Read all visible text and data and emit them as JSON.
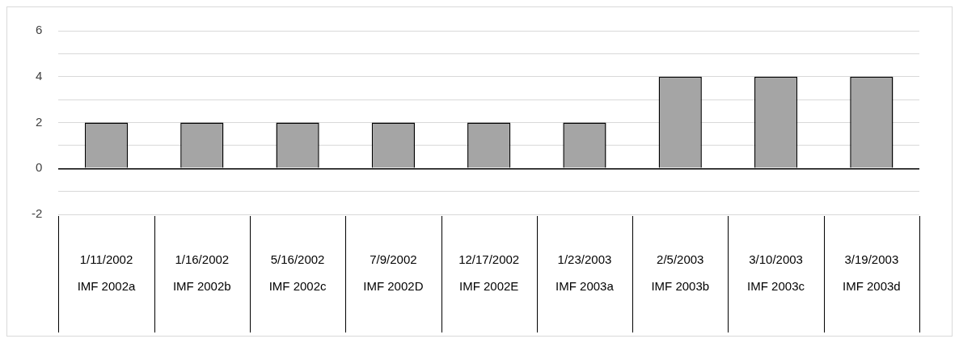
{
  "chart_data": {
    "type": "bar",
    "categories": [
      "1/11/2002\nIMF 2002a",
      "1/16/2002\nIMF 2002b",
      "5/16/2002\nIMF 2002c",
      "7/9/2002\nIMF 2002D",
      "12/17/2002\nIMF 2002E",
      "1/23/2003\nIMF 2003a",
      "2/5/2003\nIMF 2003b",
      "3/10/2003\nIMF 2003c",
      "3/19/2003\nIMF 2003d"
    ],
    "values": [
      2,
      2,
      2,
      2,
      2,
      2,
      4,
      4,
      4
    ],
    "color": "#a5a5a5",
    "ylim": [
      -2,
      6
    ],
    "yticks": [
      -2,
      {
        "value": -1,
        "label": null
      },
      0,
      {
        "value": 1,
        "label": null
      },
      2,
      {
        "value": 3,
        "label": null
      },
      4,
      {
        "value": 5,
        "label": null
      },
      6
    ],
    "grid": "y",
    "legend": false
  }
}
